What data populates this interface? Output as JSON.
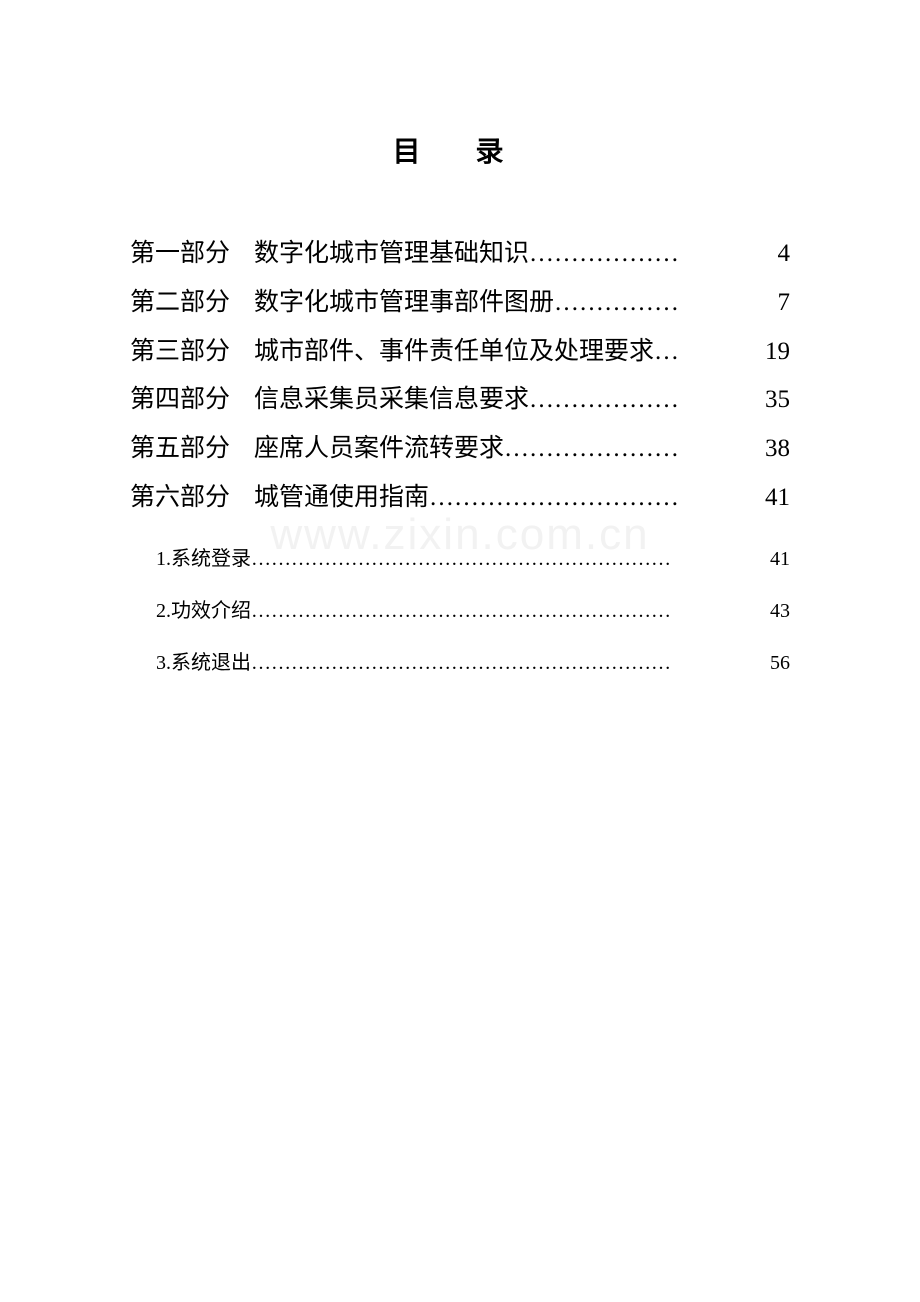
{
  "title": "目 录",
  "main_fontsize": 25,
  "sub_fontsize": 20,
  "text_color": "#000000",
  "background_color": "#ffffff",
  "watermark_color": "#f2f2f2",
  "watermark_text": "www.zixin.com.cn",
  "toc": {
    "main": [
      {
        "part": "第一部分",
        "text": "数字化城市管理基础知识",
        "dots": "………………",
        "page": "4"
      },
      {
        "part": "第二部分",
        "text": "数字化城市管理事部件图册",
        "dots": "……………",
        "page": "7"
      },
      {
        "part": "第三部分",
        "text": "城市部件、事件责任单位及处理要求",
        "dots": "…",
        "page": "19"
      },
      {
        "part": "第四部分",
        "text": "信息采集员采集信息要求",
        "dots": "………………",
        "page": "35"
      },
      {
        "part": "第五部分",
        "text": "座席人员案件流转要求",
        "dots": "…………………",
        "page": "38"
      },
      {
        "part": "第六部分",
        "text": "城管通使用指南",
        "dots": "…………………………",
        "page": "41"
      }
    ],
    "sub": [
      {
        "num": "1. ",
        "text": "系统登录",
        "dots": "………………………………………………………",
        "page": "41"
      },
      {
        "num": "2. ",
        "text": "功效介绍",
        "dots": "………………………………………………………",
        "page": "43"
      },
      {
        "num": "3. ",
        "text": "系统退出",
        "dots": "………………………………………………………",
        "page": "56"
      }
    ]
  }
}
